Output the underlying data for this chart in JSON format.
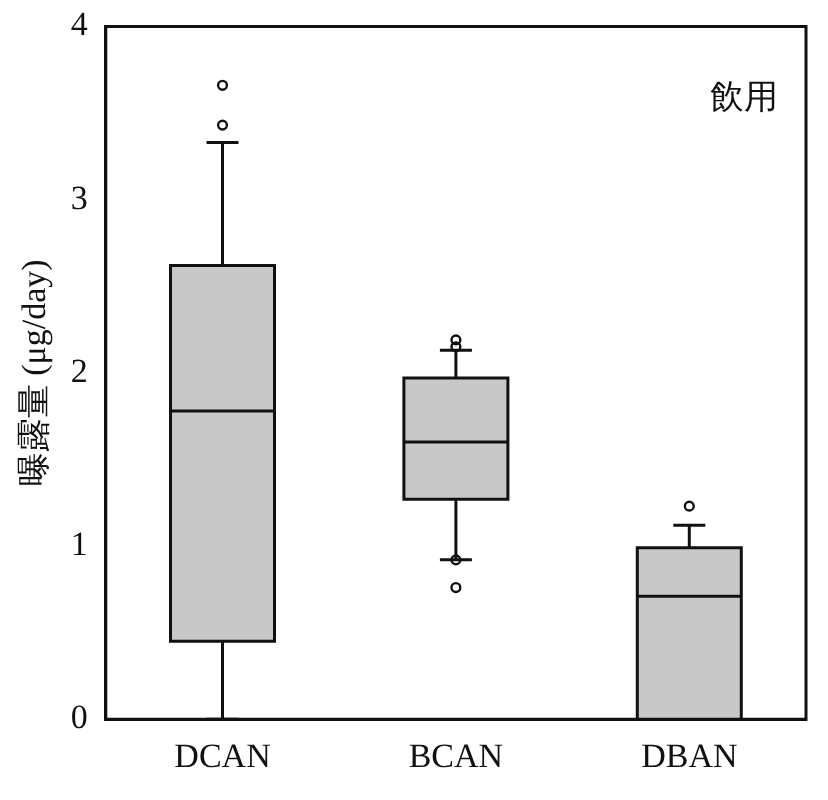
{
  "chart_data": {
    "type": "box",
    "categories": [
      "DCAN",
      "BCAN",
      "DBAN"
    ],
    "ylabel": "曝露量 (μg/day)",
    "annotations": [
      "飲用"
    ],
    "boxes": [
      {
        "low": 0,
        "q1": 0.45,
        "median": 1.78,
        "q3": 2.62,
        "high": 3.33,
        "outliers": [
          3.43,
          3.66
        ]
      },
      {
        "low": 0.92,
        "q1": 1.27,
        "median": 1.6,
        "q3": 1.97,
        "high": 2.13,
        "outliers": [
          0.76,
          0.92,
          2.15,
          2.19
        ]
      },
      {
        "low": 0,
        "q1": 0,
        "median": 0.71,
        "q3": 0.99,
        "high": 1.12,
        "outliers": [
          1.23
        ]
      }
    ],
    "color": "#c8c8c8",
    "ylim": [
      0,
      4
    ],
    "yticks": [
      0,
      1,
      2,
      3,
      4
    ],
    "grid": false
  }
}
